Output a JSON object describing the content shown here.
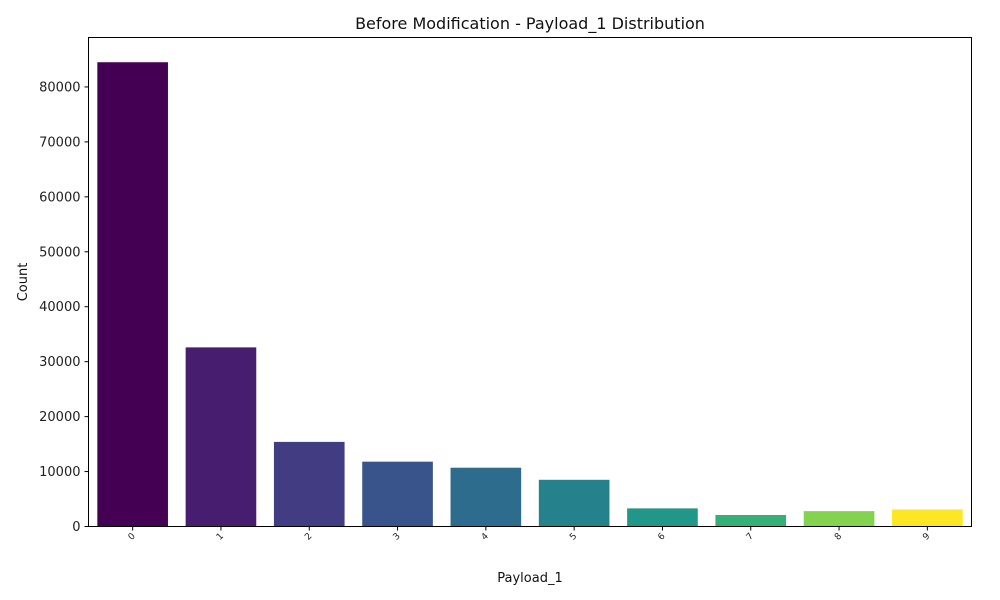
{
  "chart_data": {
    "type": "bar",
    "title": "Before Modification - Payload_1 Distribution",
    "xlabel": "Payload_1",
    "ylabel": "Count",
    "ylim": [
      0,
      89000
    ],
    "yticks": [
      0,
      10000,
      20000,
      30000,
      40000,
      50000,
      60000,
      70000,
      80000
    ],
    "grid": false,
    "legend": "none",
    "palette": "viridis",
    "categories": [
      "0",
      "1",
      "2",
      "3",
      "4",
      "5",
      "6",
      "7",
      "8",
      "9"
    ],
    "values": [
      84500,
      32600,
      15400,
      11800,
      10700,
      8500,
      3300,
      2100,
      2800,
      3100
    ]
  }
}
